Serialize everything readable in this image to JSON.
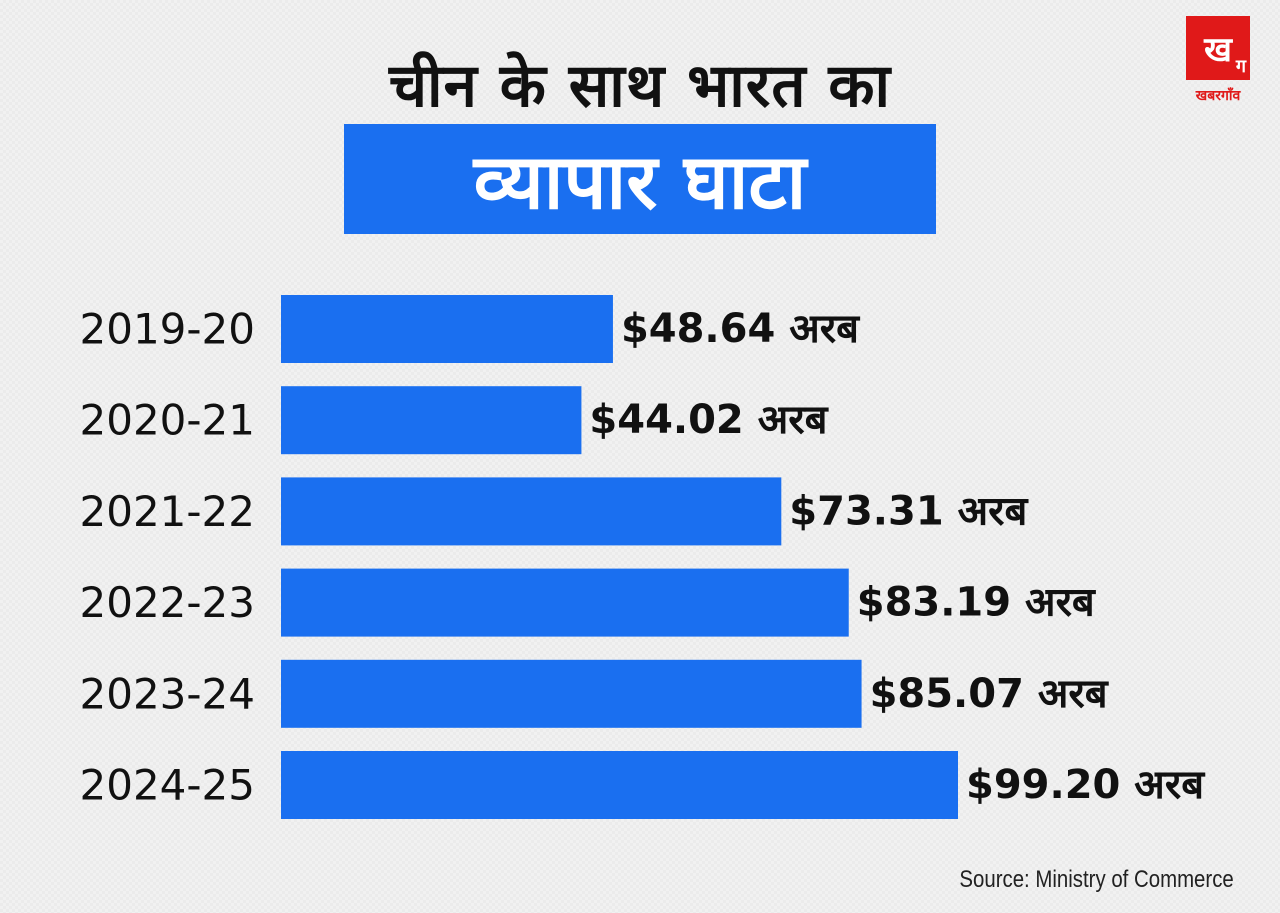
{
  "header": {
    "title_line1": "चीन के साथ भारत का",
    "title_line2": "व्यापार घाटा"
  },
  "logo": {
    "mark_main": "ख",
    "mark_sub": "ग",
    "text": "खबरगाँव"
  },
  "colors": {
    "bar": "#1a6ff0",
    "title_box": "#1a6ff0",
    "logo": "#e01919",
    "text": "#111111"
  },
  "chart_data": {
    "type": "bar",
    "orientation": "horizontal",
    "categories": [
      "2019-20",
      "2020-21",
      "2021-22",
      "2022-23",
      "2023-24",
      "2024-25"
    ],
    "values": [
      48.64,
      44.02,
      73.31,
      83.19,
      85.07,
      99.2
    ],
    "data_labels": [
      "$48.64 अरब",
      "$44.02 अरब",
      "$73.31 अरब",
      "$83.19 अरब",
      "$85.07 अरब",
      "$99.20 अरब"
    ],
    "title": "चीन के साथ भारत का व्यापार घाटा",
    "xlim": [
      0,
      99.2
    ],
    "grid": false,
    "legend": "none"
  },
  "source": "Source: Ministry of Commerce"
}
